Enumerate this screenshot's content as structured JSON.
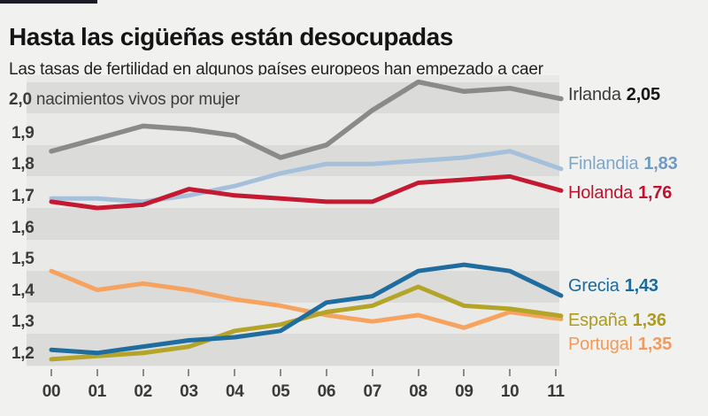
{
  "page": {
    "background": "#f1f1f0",
    "accent_bar_color": "#1b1b26"
  },
  "header": {
    "title": "Hasta las cigüeñas están desocupadas",
    "subtitle": "Las tasas de fertilidad en algunos países europeos han empezado a caer"
  },
  "chart_data": {
    "type": "line",
    "title": "Hasta las cigüeñas están desocupadas",
    "subtitle": "Las tasas de fertilidad en algunos países europeos han empezado a caer",
    "unit_label": {
      "value": "2,0",
      "text": "nacimientos vivos por mujer"
    },
    "x": [
      "00",
      "01",
      "02",
      "03",
      "04",
      "05",
      "06",
      "07",
      "08",
      "09",
      "10",
      "11"
    ],
    "ylim": [
      1.2,
      2.1
    ],
    "grid": "alternating-horizontal-bands",
    "band_colors": {
      "light": "#e9e9e8",
      "dark": "#dbdbda"
    },
    "y_ticks": [
      {
        "value": 1.9,
        "label": "1,9"
      },
      {
        "value": 1.8,
        "label": "1,8"
      },
      {
        "value": 1.7,
        "label": "1,7"
      },
      {
        "value": 1.6,
        "label": "1,6"
      },
      {
        "value": 1.5,
        "label": "1,5"
      },
      {
        "value": 1.4,
        "label": "1,4"
      },
      {
        "value": 1.3,
        "label": "1,3"
      },
      {
        "value": 1.2,
        "label": "1,2"
      }
    ],
    "legend_position": "right-end-labels",
    "series": [
      {
        "name": "Irlanda",
        "end_label": "2,05",
        "color": "#8a8a8a",
        "label_color": "#3a3a3a",
        "value_color": "#161616",
        "values": [
          1.88,
          1.92,
          1.96,
          1.95,
          1.93,
          1.86,
          1.9,
          2.01,
          2.1,
          2.07,
          2.08,
          2.05
        ]
      },
      {
        "name": "Finlandia",
        "end_label": "1,83",
        "color": "#a5c0db",
        "label_color": "#7fa6c9",
        "value_color": "#6f9ac2",
        "values": [
          1.73,
          1.73,
          1.72,
          1.74,
          1.77,
          1.81,
          1.84,
          1.84,
          1.85,
          1.86,
          1.88,
          1.83
        ]
      },
      {
        "name": "Holanda",
        "end_label": "1,76",
        "color": "#c41931",
        "label_color": "#c0122f",
        "value_color": "#c0122f",
        "values": [
          1.72,
          1.7,
          1.71,
          1.76,
          1.74,
          1.73,
          1.72,
          1.72,
          1.78,
          1.79,
          1.8,
          1.76
        ]
      },
      {
        "name": "Grecia",
        "end_label": "1,43",
        "color": "#1f6d9f",
        "label_color": "#1b6a9c",
        "value_color": "#1b6a9c",
        "values": [
          1.25,
          1.24,
          1.26,
          1.28,
          1.29,
          1.31,
          1.4,
          1.42,
          1.5,
          1.52,
          1.5,
          1.43
        ]
      },
      {
        "name": "España",
        "end_label": "1,36",
        "color": "#b4a428",
        "label_color": "#ac9c1e",
        "value_color": "#ac9c1e",
        "values": [
          1.22,
          1.23,
          1.24,
          1.26,
          1.31,
          1.33,
          1.37,
          1.39,
          1.45,
          1.39,
          1.38,
          1.36
        ]
      },
      {
        "name": "Portugal",
        "end_label": "1,35",
        "color": "#f6a360",
        "label_color": "#f29a5a",
        "value_color": "#f29a5a",
        "values": [
          1.5,
          1.44,
          1.46,
          1.44,
          1.41,
          1.39,
          1.36,
          1.34,
          1.36,
          1.32,
          1.37,
          1.35
        ]
      }
    ]
  }
}
